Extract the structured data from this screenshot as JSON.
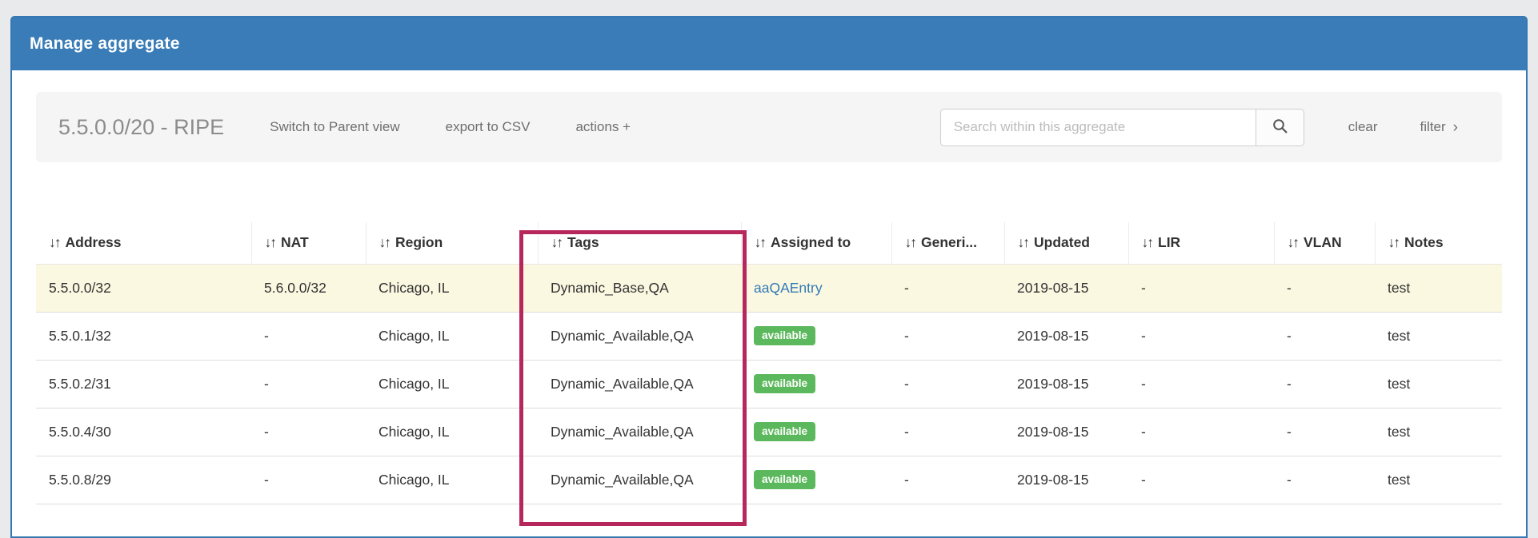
{
  "panel": {
    "title": "Manage aggregate"
  },
  "toolbar": {
    "aggregate_label": "5.5.0.0/20 - RIPE",
    "switch_view_label": "Switch to Parent view",
    "export_csv_label": "export to CSV",
    "actions_label": "actions +",
    "search_placeholder": "Search within this aggregate",
    "search_value": "",
    "clear_label": "clear",
    "filter_label": "filter",
    "filter_chevron": "›"
  },
  "table": {
    "sort_icon": "↓↑",
    "columns": [
      "Address",
      "NAT",
      "Region",
      "Tags",
      "Assigned to",
      "Generi...",
      "Updated",
      "LIR",
      "VLAN",
      "Notes"
    ],
    "rows": [
      {
        "highlight": true,
        "address": "5.5.0.0/32",
        "nat": "5.6.0.0/32",
        "region": "Chicago, IL",
        "tags": "Dynamic_Base,QA",
        "assigned": {
          "kind": "link",
          "text": "aaQAEntry"
        },
        "generic": "-",
        "updated": "2019-08-15",
        "lir": "-",
        "vlan": "-",
        "notes": "test"
      },
      {
        "highlight": false,
        "address": "5.5.0.1/32",
        "nat": "-",
        "region": "Chicago, IL",
        "tags": "Dynamic_Available,QA",
        "assigned": {
          "kind": "badge",
          "text": "available"
        },
        "generic": "-",
        "updated": "2019-08-15",
        "lir": "-",
        "vlan": "-",
        "notes": "test"
      },
      {
        "highlight": false,
        "address": "5.5.0.2/31",
        "nat": "-",
        "region": "Chicago, IL",
        "tags": "Dynamic_Available,QA",
        "assigned": {
          "kind": "badge",
          "text": "available"
        },
        "generic": "-",
        "updated": "2019-08-15",
        "lir": "-",
        "vlan": "-",
        "notes": "test"
      },
      {
        "highlight": false,
        "address": "5.5.0.4/30",
        "nat": "-",
        "region": "Chicago, IL",
        "tags": "Dynamic_Available,QA",
        "assigned": {
          "kind": "badge",
          "text": "available"
        },
        "generic": "-",
        "updated": "2019-08-15",
        "lir": "-",
        "vlan": "-",
        "notes": "test"
      },
      {
        "highlight": false,
        "address": "5.5.0.8/29",
        "nat": "-",
        "region": "Chicago, IL",
        "tags": "Dynamic_Available,QA",
        "assigned": {
          "kind": "badge",
          "text": "available"
        },
        "generic": "-",
        "updated": "2019-08-15",
        "lir": "-",
        "vlan": "-",
        "notes": "test"
      }
    ]
  },
  "colors": {
    "header_blue": "#397cb7",
    "panel_border": "#3678b3",
    "link_blue": "#337ab7",
    "badge_green": "#5cb85c",
    "highlight_row_yellow": "#fbf8e1",
    "annotation_pink": "#b7275c"
  }
}
